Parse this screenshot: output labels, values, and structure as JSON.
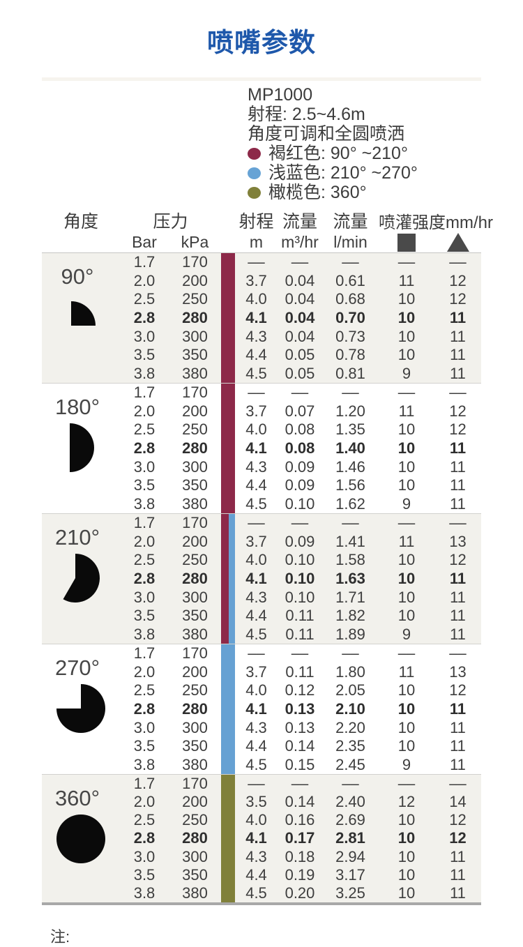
{
  "title": "喷嘴参数",
  "product": {
    "model": "MP1000",
    "range": "射程: 2.5~4.6m",
    "spray": "角度可调和全圆喷洒",
    "legend": [
      {
        "label": "褐红色: 90° ~210°",
        "color": "#8d2949"
      },
      {
        "label": "浅蓝色: 210° ~270°",
        "color": "#67a3d5"
      },
      {
        "label": "橄榄色: 360°",
        "color": "#80803a"
      }
    ]
  },
  "colors": {
    "title_blue": "#1e58ab",
    "maroon": "#8d2949",
    "light_blue": "#66a1d3",
    "olive": "#80803a",
    "icon_gray": "#4a4a4a",
    "pie_black": "#0a0a0a"
  },
  "table": {
    "headers": {
      "angle": "角度",
      "pressure": "压力",
      "pressure_units": [
        "Bar",
        "kPa"
      ],
      "range": "射程",
      "range_unit": "m",
      "flow_m3": {
        "label": "流量",
        "unit": "m³/hr"
      },
      "flow_l": {
        "label": "流量",
        "unit": "l/min"
      },
      "intensity": "喷灌强度mm/hr"
    },
    "sections": [
      {
        "angle": "90°",
        "sweep": 90,
        "bar_colors": [
          "#8d2949"
        ],
        "bold_row": 3,
        "rows": [
          [
            "1.7",
            "170",
            "––",
            "––",
            "––",
            "––",
            "––"
          ],
          [
            "2.0",
            "200",
            "3.7",
            "0.04",
            "0.61",
            "11",
            "12"
          ],
          [
            "2.5",
            "250",
            "4.0",
            "0.04",
            "0.68",
            "10",
            "12"
          ],
          [
            "2.8",
            "280",
            "4.1",
            "0.04",
            "0.70",
            "10",
            "11"
          ],
          [
            "3.0",
            "300",
            "4.3",
            "0.04",
            "0.73",
            "10",
            "11"
          ],
          [
            "3.5",
            "350",
            "4.4",
            "0.05",
            "0.78",
            "10",
            "11"
          ],
          [
            "3.8",
            "380",
            "4.5",
            "0.05",
            "0.81",
            "9",
            "11"
          ]
        ]
      },
      {
        "angle": "180°",
        "sweep": 180,
        "bar_colors": [
          "#8d2949"
        ],
        "bold_row": 3,
        "rows": [
          [
            "1.7",
            "170",
            "––",
            "––",
            "––",
            "––",
            "––"
          ],
          [
            "2.0",
            "200",
            "3.7",
            "0.07",
            "1.20",
            "11",
            "12"
          ],
          [
            "2.5",
            "250",
            "4.0",
            "0.08",
            "1.35",
            "10",
            "12"
          ],
          [
            "2.8",
            "280",
            "4.1",
            "0.08",
            "1.40",
            "10",
            "11"
          ],
          [
            "3.0",
            "300",
            "4.3",
            "0.09",
            "1.46",
            "10",
            "11"
          ],
          [
            "3.5",
            "350",
            "4.4",
            "0.09",
            "1.56",
            "10",
            "11"
          ],
          [
            "3.8",
            "380",
            "4.5",
            "0.10",
            "1.62",
            "9",
            "11"
          ]
        ]
      },
      {
        "angle": "210°",
        "sweep": 210,
        "bar_colors": [
          "#8d2949",
          "#66a1d3"
        ],
        "bold_row": 3,
        "rows": [
          [
            "1.7",
            "170",
            "––",
            "––",
            "––",
            "––",
            "––"
          ],
          [
            "2.0",
            "200",
            "3.7",
            "0.09",
            "1.41",
            "11",
            "13"
          ],
          [
            "2.5",
            "250",
            "4.0",
            "0.10",
            "1.58",
            "10",
            "12"
          ],
          [
            "2.8",
            "280",
            "4.1",
            "0.10",
            "1.63",
            "10",
            "11"
          ],
          [
            "3.0",
            "300",
            "4.3",
            "0.10",
            "1.71",
            "10",
            "11"
          ],
          [
            "3.5",
            "350",
            "4.4",
            "0.11",
            "1.82",
            "10",
            "11"
          ],
          [
            "3.8",
            "380",
            "4.5",
            "0.11",
            "1.89",
            "9",
            "11"
          ]
        ]
      },
      {
        "angle": "270°",
        "sweep": 270,
        "bar_colors": [
          "#66a1d3"
        ],
        "bold_row": 3,
        "rows": [
          [
            "1.7",
            "170",
            "––",
            "––",
            "––",
            "––",
            "––"
          ],
          [
            "2.0",
            "200",
            "3.7",
            "0.11",
            "1.80",
            "11",
            "13"
          ],
          [
            "2.5",
            "250",
            "4.0",
            "0.12",
            "2.05",
            "10",
            "12"
          ],
          [
            "2.8",
            "280",
            "4.1",
            "0.13",
            "2.10",
            "10",
            "11"
          ],
          [
            "3.0",
            "300",
            "4.3",
            "0.13",
            "2.20",
            "10",
            "11"
          ],
          [
            "3.5",
            "350",
            "4.4",
            "0.14",
            "2.35",
            "10",
            "11"
          ],
          [
            "3.8",
            "380",
            "4.5",
            "0.15",
            "2.45",
            "9",
            "11"
          ]
        ]
      },
      {
        "angle": "360°",
        "sweep": 360,
        "bar_colors": [
          "#80803a"
        ],
        "bold_row": 3,
        "rows": [
          [
            "1.7",
            "170",
            "––",
            "––",
            "––",
            "––",
            "––"
          ],
          [
            "2.0",
            "200",
            "3.5",
            "0.14",
            "2.40",
            "12",
            "14"
          ],
          [
            "2.5",
            "250",
            "4.0",
            "0.16",
            "2.69",
            "10",
            "12"
          ],
          [
            "2.8",
            "280",
            "4.1",
            "0.17",
            "2.81",
            "10",
            "12"
          ],
          [
            "3.0",
            "300",
            "4.3",
            "0.18",
            "2.94",
            "10",
            "11"
          ],
          [
            "3.5",
            "350",
            "4.4",
            "0.19",
            "3.17",
            "10",
            "11"
          ],
          [
            "3.8",
            "380",
            "4.5",
            "0.20",
            "3.25",
            "10",
            "11"
          ]
        ]
      }
    ]
  },
  "footer": {
    "note": "注:"
  }
}
